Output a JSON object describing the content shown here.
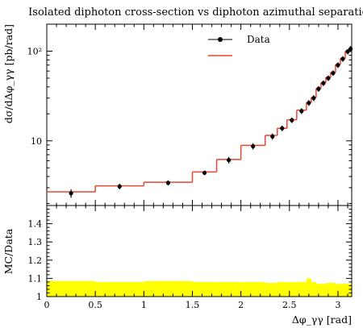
{
  "chart_data": {
    "type": "line",
    "title": "Isolated diphoton cross-section vs diphoton azimuthal separation",
    "xlabel": "Δφ_γγ [rad]",
    "ylabel": "dσ/dΔφ_γγ [pb/rad]",
    "ratio_ylabel": "MC/Data",
    "xlim": [
      0,
      3.1416
    ],
    "ylim": [
      1.9,
      200
    ],
    "yscale": "log",
    "ratio_ylim": [
      1.0,
      1.5
    ],
    "x_ticks": [
      "0",
      "0.5",
      "1",
      "1.5",
      "2",
      "2.5",
      "3"
    ],
    "y_ticks": [
      "10",
      "10²"
    ],
    "ratio_ticks": [
      "1",
      "1.1",
      "1.2",
      "1.3",
      "1.4"
    ],
    "legend_position": "top-right",
    "series": [
      {
        "name": "Data",
        "style": "points",
        "color": "#000000",
        "points": [
          {
            "x": 0.25,
            "y": 2.6,
            "err": 0.28
          },
          {
            "x": 0.75,
            "y": 3.1,
            "err": 0.22
          },
          {
            "x": 1.25,
            "y": 3.4,
            "err": 0.22
          },
          {
            "x": 1.625,
            "y": 4.4,
            "err": 0.25
          },
          {
            "x": 1.875,
            "y": 6.1,
            "err": 0.5
          },
          {
            "x": 2.125,
            "y": 8.7,
            "err": 0.7
          },
          {
            "x": 2.325,
            "y": 11.2,
            "err": 0.9
          },
          {
            "x": 2.425,
            "y": 13.8,
            "err": 1.0
          },
          {
            "x": 2.525,
            "y": 17.0,
            "err": 1.2
          },
          {
            "x": 2.625,
            "y": 21.5,
            "err": 1.6
          },
          {
            "x": 2.7,
            "y": 26.5,
            "err": 2.0
          },
          {
            "x": 2.75,
            "y": 30.0,
            "err": 2.3
          },
          {
            "x": 2.8,
            "y": 38.0,
            "err": 2.8
          },
          {
            "x": 2.85,
            "y": 44.0,
            "err": 3.2
          },
          {
            "x": 2.9,
            "y": 50.0,
            "err": 3.5
          },
          {
            "x": 2.95,
            "y": 57.0,
            "err": 4.0
          },
          {
            "x": 3.0,
            "y": 70.0,
            "err": 5.0
          },
          {
            "x": 3.05,
            "y": 82.0,
            "err": 6.0
          },
          {
            "x": 3.1,
            "y": 99.0,
            "err": 7.0
          },
          {
            "x": 3.13,
            "y": 106.0,
            "err": 8.0
          }
        ]
      },
      {
        "name": "",
        "style": "step",
        "color": "#e8462f",
        "bins": [
          {
            "x0": 0.0,
            "x1": 0.5,
            "y": 2.7
          },
          {
            "x0": 0.5,
            "x1": 1.0,
            "y": 3.15
          },
          {
            "x0": 1.0,
            "x1": 1.5,
            "y": 3.45
          },
          {
            "x0": 1.5,
            "x1": 1.75,
            "y": 4.5
          },
          {
            "x0": 1.75,
            "x1": 2.0,
            "y": 6.2
          },
          {
            "x0": 2.0,
            "x1": 2.25,
            "y": 8.9
          },
          {
            "x0": 2.25,
            "x1": 2.375,
            "y": 11.5
          },
          {
            "x0": 2.375,
            "x1": 2.475,
            "y": 13.8
          },
          {
            "x0": 2.475,
            "x1": 2.575,
            "y": 17.2
          },
          {
            "x0": 2.575,
            "x1": 2.675,
            "y": 22.0
          },
          {
            "x0": 2.675,
            "x1": 2.725,
            "y": 26.8
          },
          {
            "x0": 2.725,
            "x1": 2.775,
            "y": 30.5
          },
          {
            "x0": 2.775,
            "x1": 2.825,
            "y": 38.5
          },
          {
            "x0": 2.825,
            "x1": 2.875,
            "y": 44.5
          },
          {
            "x0": 2.875,
            "x1": 2.925,
            "y": 51.0
          },
          {
            "x0": 2.925,
            "x1": 2.975,
            "y": 58.0
          },
          {
            "x0": 2.975,
            "x1": 3.025,
            "y": 71.0
          },
          {
            "x0": 3.025,
            "x1": 3.075,
            "y": 83.0
          },
          {
            "x0": 3.075,
            "x1": 3.115,
            "y": 100.0
          },
          {
            "x0": 3.115,
            "x1": 3.1416,
            "y": 108.0
          }
        ]
      }
    ],
    "ratio_band": {
      "color": "#ffff00",
      "bins": [
        {
          "x0": 0.0,
          "x1": 0.5,
          "lo": 1.0,
          "hi": 1.085
        },
        {
          "x0": 0.5,
          "x1": 1.0,
          "lo": 1.0,
          "hi": 1.08
        },
        {
          "x0": 1.0,
          "x1": 1.5,
          "lo": 1.0,
          "hi": 1.085
        },
        {
          "x0": 1.5,
          "x1": 1.75,
          "lo": 1.0,
          "hi": 1.08
        },
        {
          "x0": 1.75,
          "x1": 2.0,
          "lo": 1.0,
          "hi": 1.08
        },
        {
          "x0": 2.0,
          "x1": 2.25,
          "lo": 1.0,
          "hi": 1.08
        },
        {
          "x0": 2.25,
          "x1": 2.375,
          "lo": 1.0,
          "hi": 1.075
        },
        {
          "x0": 2.375,
          "x1": 2.475,
          "lo": 1.0,
          "hi": 1.08
        },
        {
          "x0": 2.475,
          "x1": 2.575,
          "lo": 1.0,
          "hi": 1.08
        },
        {
          "x0": 2.575,
          "x1": 2.675,
          "lo": 1.0,
          "hi": 1.08
        },
        {
          "x0": 2.675,
          "x1": 2.725,
          "lo": 1.0,
          "hi": 1.1
        },
        {
          "x0": 2.725,
          "x1": 2.775,
          "lo": 1.0,
          "hi": 1.08
        },
        {
          "x0": 2.775,
          "x1": 2.875,
          "lo": 1.0,
          "hi": 1.07
        },
        {
          "x0": 2.875,
          "x1": 2.975,
          "lo": 1.0,
          "hi": 1.075
        },
        {
          "x0": 2.975,
          "x1": 3.1416,
          "lo": 1.0,
          "hi": 1.07
        }
      ]
    }
  }
}
